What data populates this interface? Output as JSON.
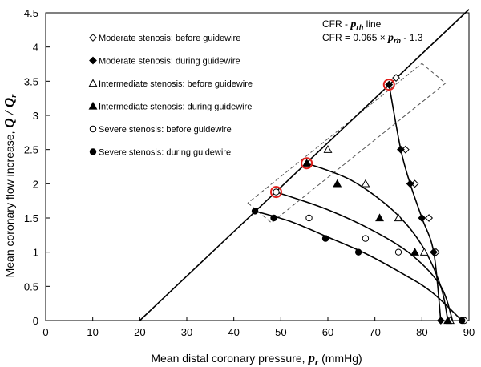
{
  "chart_data": {
    "type": "scatter",
    "title": "",
    "xlabel": {
      "main": "Mean distal coronary pressure,",
      "symbol": "p",
      "sub": "r",
      "unit": " (mmHg)"
    },
    "ylabel": {
      "main": "Mean coronary flow increase,",
      "symbol": "Q / Q",
      "sub": "r"
    },
    "xlim": [
      0,
      90
    ],
    "ylim": [
      0,
      4.5
    ],
    "xticks": [
      "0",
      "10",
      "20",
      "30",
      "40",
      "50",
      "60",
      "70",
      "80",
      "90"
    ],
    "yticks": [
      "0",
      "0.5",
      "1",
      "1.5",
      "2",
      "2.5",
      "3",
      "3.5",
      "4",
      "4.5"
    ],
    "grid": false,
    "legend_position": "top-left",
    "annotation": {
      "line1_pre": "CFR - ",
      "line1_sym": "p",
      "line1_sub": "rh",
      "line1_post": " line",
      "line2_pre": "CFR = 0.065 × ",
      "line2_sym": "p",
      "line2_sub": "rh",
      "line2_post": " - 1.3"
    },
    "cfr_line": {
      "x": [
        20,
        90
      ],
      "y": [
        0,
        4.55
      ]
    },
    "series": [
      {
        "name": "Moderate stenosis: before guidewire",
        "marker": "diamond-open",
        "x": [
          74.5,
          76.5,
          78.5,
          81.5,
          83.0
        ],
        "y": [
          3.55,
          2.5,
          2.0,
          1.5,
          1.0
        ]
      },
      {
        "name": "Moderate stenosis: during guidewire",
        "marker": "diamond-filled",
        "x": [
          73.0,
          75.5,
          77.5,
          80.0,
          82.5,
          84.0
        ],
        "y": [
          3.45,
          2.5,
          2.0,
          1.5,
          1.0,
          0.0
        ]
      },
      {
        "name": "Intermediate stenosis: before guidewire",
        "marker": "triangle-open",
        "x": [
          60.0,
          68.0,
          75.0,
          80.5,
          86.0
        ],
        "y": [
          2.5,
          2.0,
          1.5,
          1.0,
          0.0
        ]
      },
      {
        "name": "Intermediate stenosis: during guidewire",
        "marker": "triangle-filled",
        "x": [
          55.5,
          62.0,
          71.0,
          78.5,
          85.5
        ],
        "y": [
          2.3,
          2.0,
          1.5,
          1.0,
          0.0
        ]
      },
      {
        "name": "Severe stenosis: before guidewire",
        "marker": "circle-open",
        "x": [
          49.0,
          56.0,
          68.0,
          75.0,
          89.0
        ],
        "y": [
          1.88,
          1.5,
          1.2,
          1.0,
          0.0
        ]
      },
      {
        "name": "Severe stenosis: during guidewire",
        "marker": "circle-filled",
        "x": [
          44.5,
          48.5,
          59.5,
          66.5,
          88.5
        ],
        "y": [
          1.6,
          1.5,
          1.2,
          1.0,
          0.0
        ]
      }
    ],
    "curves": [
      {
        "x": [
          73.0,
          75.5,
          77.5,
          80.0,
          82.5,
          84.0
        ],
        "y": [
          3.45,
          2.5,
          2.0,
          1.5,
          1.0,
          0.0
        ]
      },
      {
        "x": [
          55.5,
          65.0,
          74.0,
          80.0,
          84.0,
          85.5
        ],
        "y": [
          2.3,
          2.05,
          1.6,
          1.1,
          0.5,
          0.0
        ]
      },
      {
        "x": [
          49.0,
          60.0,
          70.0,
          78.0,
          84.0,
          86.5
        ],
        "y": [
          1.88,
          1.62,
          1.3,
          0.95,
          0.5,
          0.0
        ]
      },
      {
        "x": [
          44.5,
          52.0,
          60.0,
          68.0,
          76.0,
          82.0,
          88.5
        ],
        "y": [
          1.6,
          1.45,
          1.22,
          0.98,
          0.68,
          0.42,
          0.0
        ]
      }
    ],
    "highlighted_points": [
      {
        "x": 49.0,
        "y": 1.88
      },
      {
        "x": 55.5,
        "y": 2.3
      },
      {
        "x": 73.0,
        "y": 3.45
      }
    ],
    "dashed_box": {
      "corners": [
        [
          43,
          1.72
        ],
        [
          48,
          1.43
        ],
        [
          85,
          3.47
        ],
        [
          80,
          3.76
        ]
      ]
    },
    "colors": {
      "axis": "#000000",
      "highlight": "#e0201c",
      "box": "#555555",
      "marker": "#000000"
    }
  }
}
